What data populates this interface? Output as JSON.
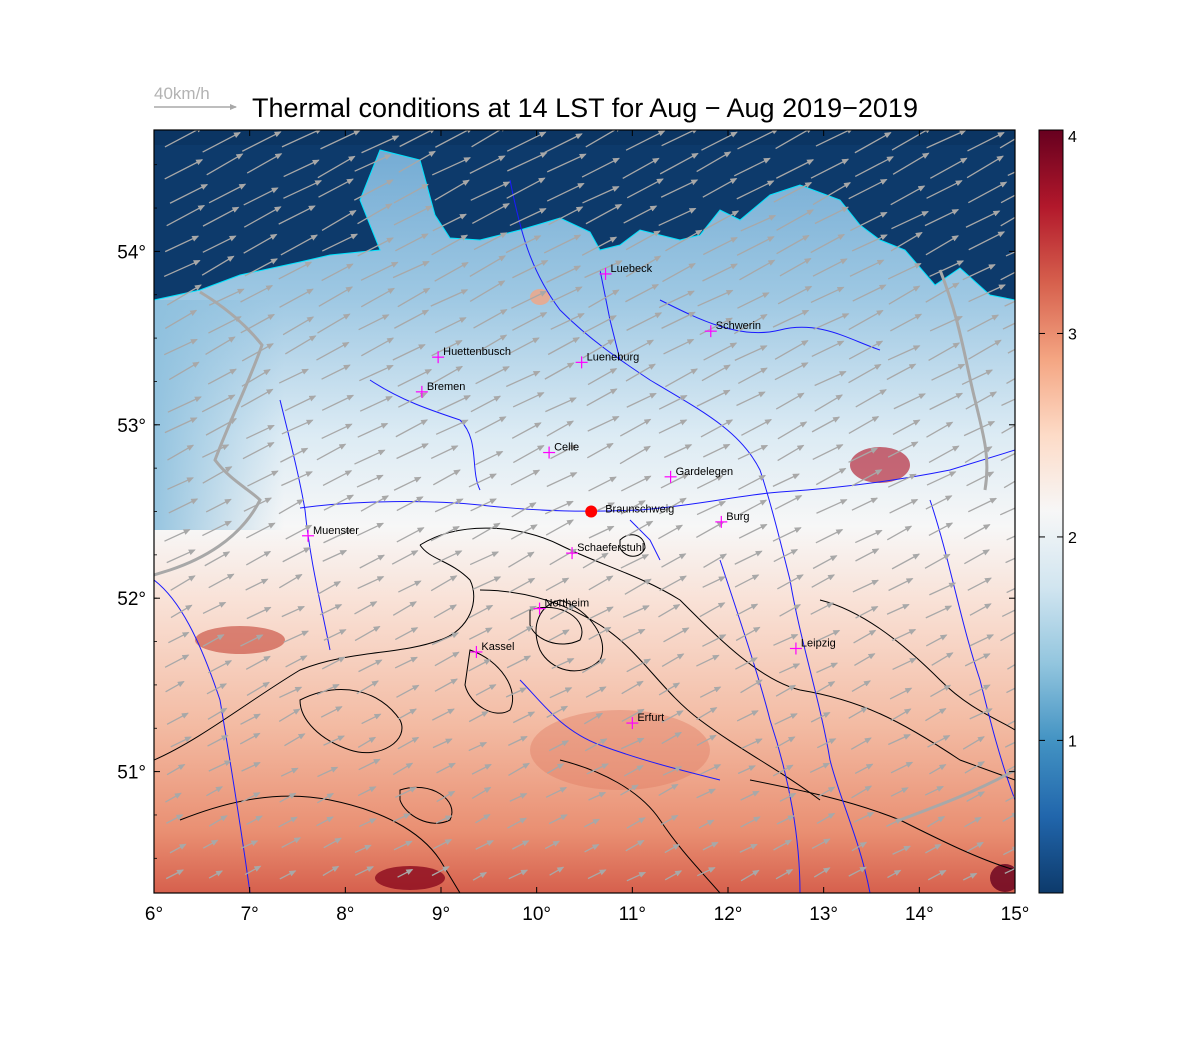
{
  "title": "Thermal conditions at 14 LST for Aug − Aug  2019−2019",
  "wind_reference": {
    "label": "40km/h",
    "color": "#a8a8a8"
  },
  "map": {
    "lon_range": [
      6,
      15
    ],
    "lat_range": [
      50.3,
      54.7
    ],
    "x_ticks": [
      {
        "value": 6,
        "label": "6°"
      },
      {
        "value": 7,
        "label": "7°"
      },
      {
        "value": 8,
        "label": "8°"
      },
      {
        "value": 9,
        "label": "9°"
      },
      {
        "value": 10,
        "label": "10°"
      },
      {
        "value": 11,
        "label": "11°"
      },
      {
        "value": 12,
        "label": "12°"
      },
      {
        "value": 13,
        "label": "13°"
      },
      {
        "value": 14,
        "label": "14°"
      },
      {
        "value": 15,
        "label": "15°"
      }
    ],
    "y_ticks": [
      {
        "value": 51,
        "label": "51°"
      },
      {
        "value": 52,
        "label": "52°"
      },
      {
        "value": 53,
        "label": "53°"
      },
      {
        "value": 54,
        "label": "54°"
      }
    ],
    "cities": [
      {
        "name": "Luebeck",
        "lon": 10.72,
        "lat": 53.87
      },
      {
        "name": "Schwerin",
        "lon": 11.82,
        "lat": 53.54
      },
      {
        "name": "Huettenbusch",
        "lon": 8.97,
        "lat": 53.39
      },
      {
        "name": "Lueneburg",
        "lon": 10.47,
        "lat": 53.36
      },
      {
        "name": "Bremen",
        "lon": 8.8,
        "lat": 53.19
      },
      {
        "name": "Celle",
        "lon": 10.13,
        "lat": 52.84
      },
      {
        "name": "Gardelegen",
        "lon": 11.4,
        "lat": 52.7
      },
      {
        "name": "Burg",
        "lon": 11.93,
        "lat": 52.44
      },
      {
        "name": "Muenster",
        "lon": 7.61,
        "lat": 52.36
      },
      {
        "name": "Schaeferstuhl",
        "lon": 10.37,
        "lat": 52.26
      },
      {
        "name": "Northeim",
        "lon": 10.03,
        "lat": 51.94
      },
      {
        "name": "Kassel",
        "lon": 9.37,
        "lat": 51.69
      },
      {
        "name": "Leipzig",
        "lon": 12.71,
        "lat": 51.71
      },
      {
        "name": "Erfurt",
        "lon": 11.0,
        "lat": 51.28
      }
    ],
    "highlight": {
      "name": "Braunschweig",
      "lon": 10.57,
      "lat": 52.5,
      "color": "#ff0000"
    },
    "city_marker_color": "#ff00ff",
    "colors": {
      "sea": "#0d3a6b",
      "coast": "#00e5ff",
      "rivers": "#1a1aff",
      "borders": "#a8a8a8",
      "contours": "#000000",
      "wind": "#a8a8a8"
    }
  },
  "colorbar": {
    "min": 0.25,
    "max": 4,
    "ticks": [
      {
        "value": 1,
        "label": "1"
      },
      {
        "value": 2,
        "label": "2"
      },
      {
        "value": 3,
        "label": "3"
      },
      {
        "value": 4,
        "label": "4"
      }
    ],
    "stops": [
      "#0d3a6b",
      "#2166ac",
      "#4393c3",
      "#92c5de",
      "#d1e5f0",
      "#f7f7f7",
      "#fddbc7",
      "#f4a582",
      "#d6604d",
      "#b2182b",
      "#67001f"
    ]
  }
}
